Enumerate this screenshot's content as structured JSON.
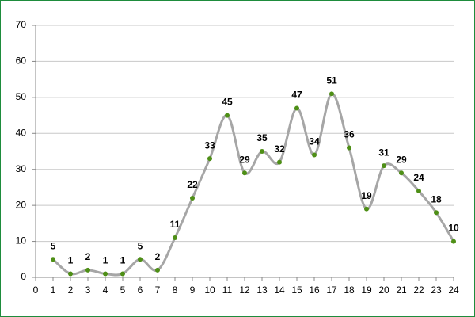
{
  "chart_data": {
    "type": "line",
    "x": [
      1,
      2,
      3,
      4,
      5,
      6,
      7,
      8,
      9,
      10,
      11,
      12,
      13,
      14,
      15,
      16,
      17,
      18,
      19,
      20,
      21,
      22,
      23,
      24
    ],
    "series": [
      {
        "color": "#a6a6a6",
        "marker_color": "#4e8f16",
        "values": [
          5,
          1,
          2,
          1,
          1,
          5,
          2,
          11,
          22,
          33,
          45,
          29,
          35,
          32,
          47,
          34,
          51,
          36,
          19,
          31,
          29,
          24,
          18,
          10
        ]
      }
    ],
    "xlim": [
      0,
      24
    ],
    "xticks": [
      0,
      1,
      2,
      3,
      4,
      5,
      6,
      7,
      8,
      9,
      10,
      11,
      12,
      13,
      14,
      15,
      16,
      17,
      18,
      19,
      20,
      21,
      22,
      23,
      24
    ],
    "ylim": [
      0,
      70
    ],
    "yticks": [
      0,
      10,
      20,
      30,
      40,
      50,
      60,
      70
    ],
    "grid": true,
    "smooth": true,
    "data_labels": true
  }
}
